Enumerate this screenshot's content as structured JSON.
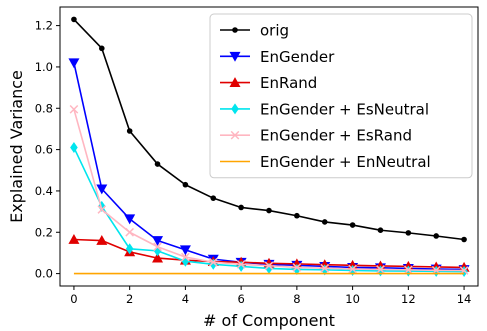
{
  "chart_data": {
    "type": "line",
    "xlabel": "# of Component",
    "ylabel": "Explained Variance",
    "xlim": [
      -0.5,
      14.5
    ],
    "ylim": [
      -0.06,
      1.29
    ],
    "xticks": [
      0,
      2,
      4,
      6,
      8,
      10,
      12,
      14
    ],
    "yticks": [
      0.0,
      0.2,
      0.4,
      0.6,
      0.8,
      1.0,
      1.2
    ],
    "ytick_labels": [
      "0.0",
      "0.2",
      "0.4",
      "0.6",
      "0.8",
      "1.0",
      "1.2"
    ],
    "grid": false,
    "legend_position": "top-right",
    "x": [
      0,
      1,
      2,
      3,
      4,
      5,
      6,
      7,
      8,
      9,
      10,
      11,
      12,
      13,
      14
    ],
    "series": [
      {
        "name": "orig",
        "color": "#000000",
        "marker": "dot",
        "values": [
          1.23,
          1.09,
          0.69,
          0.53,
          0.43,
          0.365,
          0.32,
          0.305,
          0.28,
          0.25,
          0.235,
          0.21,
          0.197,
          0.182,
          0.165
        ]
      },
      {
        "name": "EnGender",
        "color": "#0000ff",
        "marker": "triangle-down",
        "values": [
          1.02,
          0.41,
          0.265,
          0.16,
          0.115,
          0.07,
          0.055,
          0.045,
          0.04,
          0.035,
          0.03,
          0.028,
          0.025,
          0.022,
          0.02
        ]
      },
      {
        "name": "EnRand",
        "color": "#e00000",
        "marker": "triangle-up",
        "values": [
          0.165,
          0.16,
          0.105,
          0.075,
          0.065,
          0.058,
          0.055,
          0.05,
          0.047,
          0.043,
          0.04,
          0.037,
          0.035,
          0.032,
          0.03
        ]
      },
      {
        "name": "EnGender + EsNeutral",
        "color": "#00e5ee",
        "marker": "diamond",
        "values": [
          0.61,
          0.325,
          0.12,
          0.11,
          0.06,
          0.045,
          0.035,
          0.025,
          0.02,
          0.018,
          0.015,
          0.013,
          0.012,
          0.011,
          0.01
        ]
      },
      {
        "name": "EnGender + EsRand",
        "color": "#ffb6c1",
        "marker": "x",
        "values": [
          0.795,
          0.31,
          0.2,
          0.13,
          0.08,
          0.055,
          0.045,
          0.038,
          0.03,
          0.026,
          0.022,
          0.02,
          0.018,
          0.016,
          0.015
        ]
      },
      {
        "name": "EnGender + EnNeutral",
        "color": "#ffa500",
        "marker": "none",
        "values": [
          0,
          0,
          0,
          0,
          0,
          0,
          0,
          0,
          0,
          0,
          0,
          0,
          0,
          0,
          0
        ]
      }
    ]
  }
}
